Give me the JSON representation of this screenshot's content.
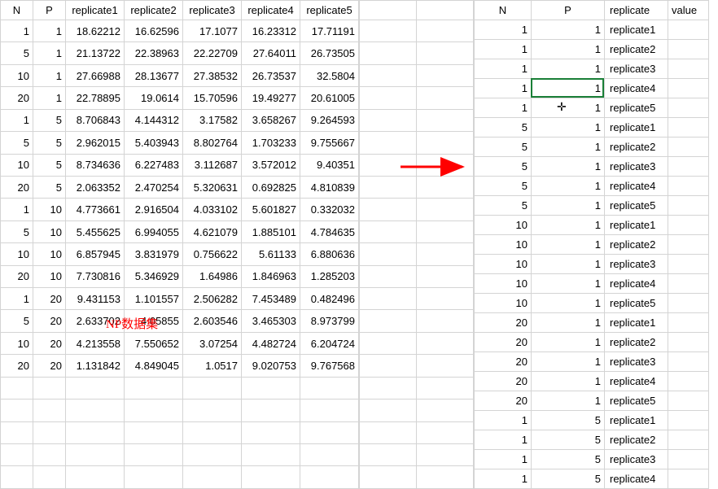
{
  "left": {
    "headers": [
      "N",
      "P",
      "replicate1",
      "replicate2",
      "replicate3",
      "replicate4",
      "replicate5"
    ],
    "rows": [
      [
        "1",
        "1",
        "18.62212",
        "16.62596",
        "17.1077",
        "16.23312",
        "17.71191"
      ],
      [
        "5",
        "1",
        "21.13722",
        "22.38963",
        "22.22709",
        "27.64011",
        "26.73505"
      ],
      [
        "10",
        "1",
        "27.66988",
        "28.13677",
        "27.38532",
        "26.73537",
        "32.5804"
      ],
      [
        "20",
        "1",
        "22.78895",
        "19.0614",
        "15.70596",
        "19.49277",
        "20.61005"
      ],
      [
        "1",
        "5",
        "8.706843",
        "4.144312",
        "3.17582",
        "3.658267",
        "9.264593"
      ],
      [
        "5",
        "5",
        "2.962015",
        "5.403943",
        "8.802764",
        "1.703233",
        "9.755667"
      ],
      [
        "10",
        "5",
        "8.734636",
        "6.227483",
        "3.112687",
        "3.572012",
        "9.40351"
      ],
      [
        "20",
        "5",
        "2.063352",
        "2.470254",
        "5.320631",
        "0.692825",
        "4.810839"
      ],
      [
        "1",
        "10",
        "4.773661",
        "2.916504",
        "4.033102",
        "5.601827",
        "0.332032"
      ],
      [
        "5",
        "10",
        "5.455625",
        "6.994055",
        "4.621079",
        "1.885101",
        "4.784635"
      ],
      [
        "10",
        "10",
        "6.857945",
        "3.831979",
        "0.756622",
        "5.61133",
        "6.880636"
      ],
      [
        "20",
        "10",
        "7.730816",
        "5.346929",
        "1.64986",
        "1.846963",
        "1.285203"
      ],
      [
        "1",
        "20",
        "9.431153",
        "1.101557",
        "2.506282",
        "7.453489",
        "0.482496"
      ],
      [
        "5",
        "20",
        "2.633702",
        "4.05855",
        "2.603546",
        "3.465303",
        "8.973799"
      ],
      [
        "10",
        "20",
        "4.213558",
        "7.550652",
        "3.07254",
        "4.482724",
        "6.204724"
      ],
      [
        "20",
        "20",
        "1.131842",
        "4.849045",
        "1.0517",
        "9.020753",
        "9.767568"
      ]
    ],
    "blank_rows": 5
  },
  "gap_cols": 2,
  "right": {
    "headers": [
      "N",
      "P",
      "replicate",
      "value"
    ],
    "rows": [
      [
        "1",
        "1",
        "replicate1",
        ""
      ],
      [
        "1",
        "1",
        "replicate2",
        ""
      ],
      [
        "1",
        "1",
        "replicate3",
        ""
      ],
      [
        "1",
        "1",
        "replicate4",
        ""
      ],
      [
        "1",
        "1",
        "replicate5",
        ""
      ],
      [
        "5",
        "1",
        "replicate1",
        ""
      ],
      [
        "5",
        "1",
        "replicate2",
        ""
      ],
      [
        "5",
        "1",
        "replicate3",
        ""
      ],
      [
        "5",
        "1",
        "replicate4",
        ""
      ],
      [
        "5",
        "1",
        "replicate5",
        ""
      ],
      [
        "10",
        "1",
        "replicate1",
        ""
      ],
      [
        "10",
        "1",
        "replicate2",
        ""
      ],
      [
        "10",
        "1",
        "replicate3",
        ""
      ],
      [
        "10",
        "1",
        "replicate4",
        ""
      ],
      [
        "10",
        "1",
        "replicate5",
        ""
      ],
      [
        "20",
        "1",
        "replicate1",
        ""
      ],
      [
        "20",
        "1",
        "replicate2",
        ""
      ],
      [
        "20",
        "1",
        "replicate3",
        ""
      ],
      [
        "20",
        "1",
        "replicate4",
        ""
      ],
      [
        "20",
        "1",
        "replicate5",
        ""
      ],
      [
        "1",
        "5",
        "replicate1",
        ""
      ],
      [
        "1",
        "5",
        "replicate2",
        ""
      ],
      [
        "1",
        "5",
        "replicate3",
        ""
      ],
      [
        "1",
        "5",
        "replicate4",
        ""
      ]
    ]
  },
  "label": "NP数据集",
  "selection": {
    "row_index": 3,
    "col": "P"
  },
  "cursor_glyph": "✛",
  "colors": {
    "grid": "#d4d4d4",
    "select_border": "#1a7f37",
    "label": "#ff0000",
    "arrow": "#ff0000"
  }
}
